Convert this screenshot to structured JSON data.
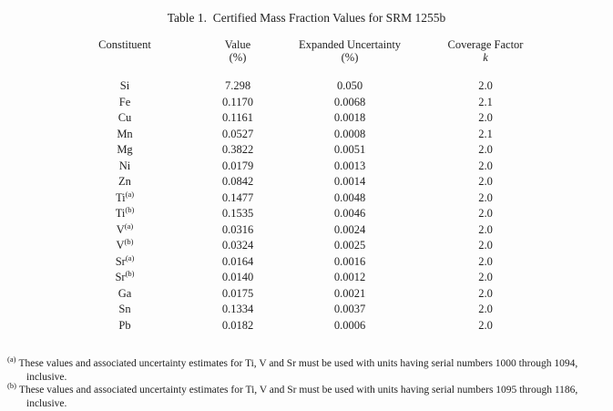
{
  "page": {
    "title": "Table 1.  Certified Mass Fraction Values for SRM 1255b"
  },
  "table": {
    "headers": {
      "constituent": {
        "line1": "Constituent",
        "line2": ""
      },
      "value": {
        "line1": "Value",
        "line2": "(%)"
      },
      "uncertainty": {
        "line1": "Expanded Uncertainty",
        "line2": "(%)"
      },
      "coverage": {
        "line1": "Coverage Factor",
        "line2": "k"
      }
    },
    "rows": [
      {
        "element": "Si",
        "sup": "",
        "value": "7.298",
        "uncertainty": "0.050",
        "k": "2.0"
      },
      {
        "element": "Fe",
        "sup": "",
        "value": "0.1170",
        "uncertainty": "0.0068",
        "k": "2.1"
      },
      {
        "element": "Cu",
        "sup": "",
        "value": "0.1161",
        "uncertainty": "0.0018",
        "k": "2.0"
      },
      {
        "element": "Mn",
        "sup": "",
        "value": "0.0527",
        "uncertainty": "0.0008",
        "k": "2.1"
      },
      {
        "element": "Mg",
        "sup": "",
        "value": "0.3822",
        "uncertainty": "0.0051",
        "k": "2.0"
      },
      {
        "element": "Ni",
        "sup": "",
        "value": "0.0179",
        "uncertainty": "0.0013",
        "k": "2.0"
      },
      {
        "element": "Zn",
        "sup": "",
        "value": "0.0842",
        "uncertainty": "0.0014",
        "k": "2.0"
      },
      {
        "element": "Ti",
        "sup": "(a)",
        "value": "0.1477",
        "uncertainty": "0.0048",
        "k": "2.0"
      },
      {
        "element": "Ti",
        "sup": "(b)",
        "value": "0.1535",
        "uncertainty": "0.0046",
        "k": "2.0"
      },
      {
        "element": "V",
        "sup": "(a)",
        "value": "0.0316",
        "uncertainty": "0.0024",
        "k": "2.0"
      },
      {
        "element": "V",
        "sup": "(b)",
        "value": "0.0324",
        "uncertainty": "0.0025",
        "k": "2.0"
      },
      {
        "element": "Sr",
        "sup": "(a)",
        "value": "0.0164",
        "uncertainty": "0.0016",
        "k": "2.0"
      },
      {
        "element": "Sr",
        "sup": "(b)",
        "value": "0.0140",
        "uncertainty": "0.0012",
        "k": "2.0"
      },
      {
        "element": "Ga",
        "sup": "",
        "value": "0.0175",
        "uncertainty": "0.0021",
        "k": "2.0"
      },
      {
        "element": "Sn",
        "sup": "",
        "value": "0.1334",
        "uncertainty": "0.0037",
        "k": "2.0"
      },
      {
        "element": "Pb",
        "sup": "",
        "value": "0.0182",
        "uncertainty": "0.0006",
        "k": "2.0"
      }
    ]
  },
  "footnotes": [
    {
      "marker": "(a)",
      "text": "These values and associated uncertainty estimates for Ti, V and Sr must be used with units having serial numbers 1000 through 1094, inclusive."
    },
    {
      "marker": "(b)",
      "text": "These values and associated uncertainty estimates for Ti, V and Sr must be used with units having serial numbers 1095 through 1186, inclusive."
    }
  ]
}
